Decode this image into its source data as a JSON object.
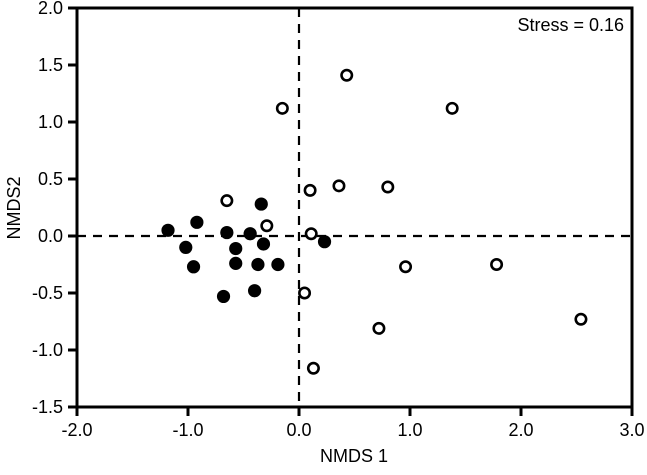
{
  "chart_data": {
    "type": "scatter",
    "title": "",
    "xlabel": "NMDS 1",
    "ylabel": "NMDS2",
    "annotation": "Stress = 0.16",
    "xlim": [
      -2.0,
      3.0
    ],
    "ylim": [
      -1.5,
      2.0
    ],
    "xticks": [
      -2.0,
      -1.0,
      0.0,
      1.0,
      2.0,
      3.0
    ],
    "yticks": [
      2.0,
      1.5,
      1.0,
      0.5,
      0.0,
      -0.5,
      -1.0,
      -1.5
    ],
    "tick_decimals": 1,
    "grid": false,
    "legend": "none",
    "reference_lines": {
      "x": 0.0,
      "y": 0.0,
      "style": "dashed"
    },
    "colors": {
      "foreground": "#000000",
      "background": "#ffffff"
    },
    "series": [
      {
        "name": "filled-circles",
        "marker": "circle-filled",
        "fill": "#000000",
        "stroke": "#000000",
        "points": [
          [
            -1.18,
            0.05
          ],
          [
            -1.02,
            -0.1
          ],
          [
            -0.95,
            -0.27
          ],
          [
            -0.92,
            0.12
          ],
          [
            -0.68,
            -0.53
          ],
          [
            -0.65,
            0.03
          ],
          [
            -0.57,
            -0.11
          ],
          [
            -0.57,
            -0.24
          ],
          [
            -0.44,
            0.02
          ],
          [
            -0.4,
            -0.48
          ],
          [
            -0.37,
            -0.25
          ],
          [
            -0.34,
            0.28
          ],
          [
            -0.32,
            -0.07
          ],
          [
            -0.19,
            -0.25
          ],
          [
            0.23,
            -0.05
          ]
        ]
      },
      {
        "name": "open-circles",
        "marker": "circle-open",
        "fill": "#ffffff",
        "stroke": "#000000",
        "points": [
          [
            -0.65,
            0.31
          ],
          [
            -0.29,
            0.09
          ],
          [
            -0.15,
            1.12
          ],
          [
            0.05,
            -0.5
          ],
          [
            0.1,
            0.4
          ],
          [
            0.11,
            0.02
          ],
          [
            0.13,
            -1.16
          ],
          [
            0.36,
            0.44
          ],
          [
            0.43,
            1.41
          ],
          [
            0.72,
            -0.81
          ],
          [
            0.8,
            0.43
          ],
          [
            0.96,
            -0.27
          ],
          [
            1.38,
            1.12
          ],
          [
            1.78,
            -0.25
          ],
          [
            2.54,
            -0.73
          ]
        ]
      }
    ]
  }
}
